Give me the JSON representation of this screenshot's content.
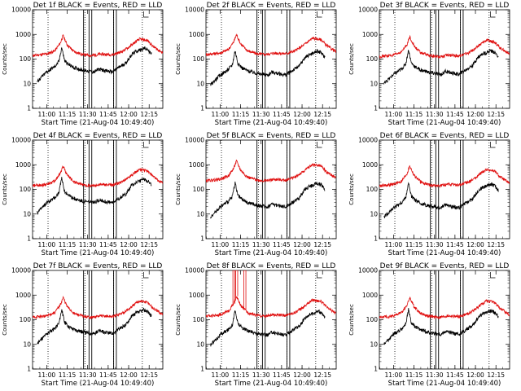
{
  "colors": {
    "events": "#000000",
    "lld": "#e01010",
    "axis": "#000000"
  },
  "panels": [
    {
      "title": "Det 1f BLACK = Events, RED = LLD"
    },
    {
      "title": "Det 2f BLACK = Events, RED = LLD"
    },
    {
      "title": "Det 3f BLACK = Events, RED = LLD"
    },
    {
      "title": "Det 4f BLACK = Events, RED = LLD"
    },
    {
      "title": "Det 5f BLACK = Events, RED = LLD"
    },
    {
      "title": "Det 6f BLACK = Events, RED = LLD"
    },
    {
      "title": "Det 7f BLACK = Events, RED = LLD"
    },
    {
      "title": "Det 8f BLACK = Events, RED = LLD"
    },
    {
      "title": "Det 9f BLACK = Events, RED = LLD"
    }
  ],
  "chart_data": {
    "type": "line",
    "layout": "3x3 small multiples",
    "xlabel": "Start Time (21-Aug-04 10:49:40)",
    "ylabel": "Counts/sec",
    "y_scale": "log",
    "ylim": [
      1,
      10000
    ],
    "y_ticks": [
      1,
      10,
      100,
      1000,
      10000
    ],
    "y_tick_labels": [
      "1",
      "10",
      "100",
      "1000",
      "10000"
    ],
    "x_ticks": [
      "11:00",
      "11:15",
      "11:30",
      "11:45",
      "12:00",
      "12:15"
    ],
    "xlim": [
      "10:49:40",
      "12:25:00"
    ],
    "dotted_lines": [
      "11:01",
      "11:28",
      "11:49",
      "12:10"
    ],
    "solid_lines": [
      "11:27",
      "11:31",
      "11:33",
      "11:49",
      "11:51"
    ],
    "legend": "in titles",
    "series_names": [
      "Events",
      "LLD"
    ],
    "events_profile": {
      "x": [
        "10:53",
        "11:00",
        "11:06",
        "11:09",
        "11:11",
        "11:13",
        "11:16",
        "11:20",
        "11:27",
        "11:35",
        "11:38",
        "11:42",
        "11:48",
        "11:55",
        "11:58",
        "12:02",
        "12:05",
        "12:08",
        "12:11",
        "12:14",
        "12:17"
      ],
      "y": [
        12,
        30,
        50,
        80,
        300,
        90,
        60,
        45,
        35,
        30,
        40,
        35,
        30,
        55,
        70,
        150,
        200,
        230,
        280,
        240,
        150
      ]
    },
    "lld_profile": {
      "x": [
        "10:49:40",
        "11:00",
        "11:06",
        "11:10",
        "11:12",
        "11:15",
        "11:20",
        "11:27",
        "11:33",
        "11:40",
        "11:48",
        "11:55",
        "12:00",
        "12:05",
        "12:08",
        "12:11",
        "12:14",
        "12:18",
        "12:25"
      ],
      "y": [
        140,
        160,
        220,
        450,
        900,
        380,
        200,
        150,
        140,
        160,
        150,
        200,
        300,
        500,
        650,
        600,
        560,
        320,
        180
      ]
    },
    "lld_spikes_det8": {
      "x": [
        "11:10",
        "11:12",
        "11:18"
      ],
      "y": [
        10000,
        10000,
        10000
      ]
    }
  }
}
